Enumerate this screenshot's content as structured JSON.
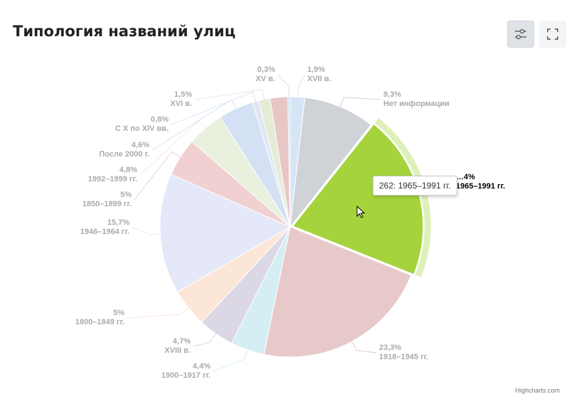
{
  "page": {
    "title": "Типология названий улиц"
  },
  "toolbar": {
    "filter_icon": "sliders-icon",
    "expand_icon": "fullscreen-icon"
  },
  "tooltip": {
    "text": "262: 1965–1991 гг."
  },
  "credits": "Highcharts.com",
  "chart_data": {
    "type": "pie",
    "title": "Типология названий улиц",
    "hovered_slice": "1965–1991 гг.",
    "slices": [
      {
        "name": "XVII в.",
        "value": 1.9,
        "label": "1,9%",
        "color": "#d6e6f7"
      },
      {
        "name": "Нет информации",
        "value": 9.3,
        "label": "9,3%",
        "color": "#cfd2d7"
      },
      {
        "name": "1965–1991 гг.",
        "value": 21.4,
        "label": "…4%",
        "color": "#a4d33b"
      },
      {
        "name": "1918–1945 гг.",
        "value": 23.3,
        "label": "23,3%",
        "color": "#e8c9c9"
      },
      {
        "name": "1900–1917 гг.",
        "value": 4.4,
        "label": "4,4%",
        "color": "#d4eef3"
      },
      {
        "name": "XVIII в.",
        "value": 4.7,
        "label": "4,7%",
        "color": "#dcd7e5"
      },
      {
        "name": "1800–1849 гг.",
        "value": 5,
        "label": "5%",
        "color": "#fce6d7"
      },
      {
        "name": "1946–1964 гг.",
        "value": 15.7,
        "label": "15,7%",
        "color": "#e4e8f8"
      },
      {
        "name": "1850–1899 гг.",
        "value": 5,
        "label": "5%",
        "color": "#f0d0d0"
      },
      {
        "name": "1992–1999 гг.",
        "value": 4.8,
        "label": "4,8%",
        "color": "#e9f0de"
      },
      {
        "name": "После 2000 г.",
        "value": 4.6,
        "label": "4,6%",
        "color": "#d4e1f4"
      },
      {
        "name": "С X по XIV вв.",
        "value": 0.8,
        "label": "0,8%",
        "color": "#dfe7f4"
      },
      {
        "name": "XVI в.",
        "value": 1.5,
        "label": "1,5%",
        "color": "#e4ecd6"
      },
      {
        "name": "",
        "value": 2.3,
        "label": "",
        "color": "#e8c6c6"
      },
      {
        "name": "XV в.",
        "value": 0.3,
        "label": "0,3%",
        "color": "#cfe0f2"
      }
    ]
  }
}
